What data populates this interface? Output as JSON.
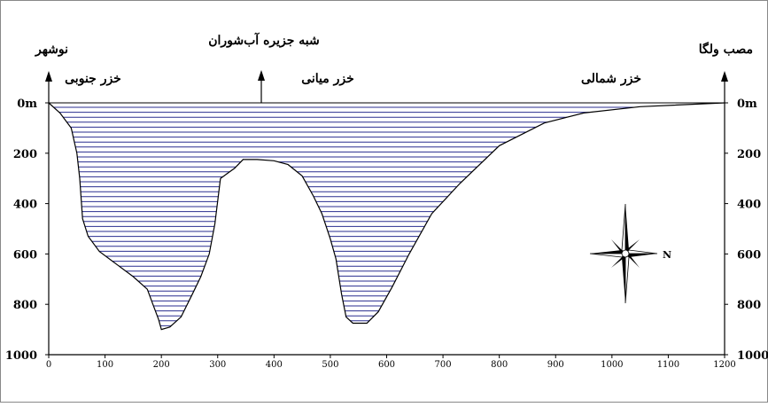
{
  "chart_data": {
    "type": "area",
    "title": "",
    "xlabel": "",
    "ylabel": "",
    "xlim": [
      0,
      1200
    ],
    "ylim": [
      0,
      1000
    ],
    "y_inverted": true,
    "x_ticks": [
      "0",
      "100",
      "200",
      "300",
      "400",
      "500",
      "600",
      "700",
      "800",
      "900",
      "1000",
      "1100",
      "1200"
    ],
    "y_ticks_left": [
      "0m",
      "200",
      "400",
      "600",
      "800",
      "1000"
    ],
    "y_ticks_right": [
      "0m",
      "200",
      "400",
      "600",
      "800",
      "1000"
    ],
    "profile": [
      {
        "x": 0,
        "y": 0
      },
      {
        "x": 20,
        "y": 40
      },
      {
        "x": 40,
        "y": 100
      },
      {
        "x": 50,
        "y": 200
      },
      {
        "x": 55,
        "y": 300
      },
      {
        "x": 60,
        "y": 460
      },
      {
        "x": 70,
        "y": 530
      },
      {
        "x": 90,
        "y": 590
      },
      {
        "x": 120,
        "y": 640
      },
      {
        "x": 150,
        "y": 690
      },
      {
        "x": 175,
        "y": 740
      },
      {
        "x": 185,
        "y": 800
      },
      {
        "x": 195,
        "y": 860
      },
      {
        "x": 200,
        "y": 900
      },
      {
        "x": 215,
        "y": 890
      },
      {
        "x": 235,
        "y": 850
      },
      {
        "x": 255,
        "y": 760
      },
      {
        "x": 270,
        "y": 690
      },
      {
        "x": 285,
        "y": 600
      },
      {
        "x": 295,
        "y": 480
      },
      {
        "x": 305,
        "y": 300
      },
      {
        "x": 330,
        "y": 260
      },
      {
        "x": 345,
        "y": 225
      },
      {
        "x": 370,
        "y": 225
      },
      {
        "x": 400,
        "y": 230
      },
      {
        "x": 425,
        "y": 245
      },
      {
        "x": 450,
        "y": 290
      },
      {
        "x": 470,
        "y": 370
      },
      {
        "x": 485,
        "y": 440
      },
      {
        "x": 500,
        "y": 540
      },
      {
        "x": 510,
        "y": 620
      },
      {
        "x": 520,
        "y": 760
      },
      {
        "x": 528,
        "y": 850
      },
      {
        "x": 540,
        "y": 875
      },
      {
        "x": 565,
        "y": 875
      },
      {
        "x": 585,
        "y": 830
      },
      {
        "x": 610,
        "y": 730
      },
      {
        "x": 640,
        "y": 600
      },
      {
        "x": 680,
        "y": 440
      },
      {
        "x": 730,
        "y": 320
      },
      {
        "x": 800,
        "y": 170
      },
      {
        "x": 880,
        "y": 80
      },
      {
        "x": 950,
        "y": 40
      },
      {
        "x": 1050,
        "y": 15
      },
      {
        "x": 1200,
        "y": 0
      }
    ],
    "fill_pattern": "horizontal-lines",
    "line_color": "#000000",
    "fill_line_color": "#2a2e8f",
    "annotations": {
      "left_top": "نوشهر",
      "center_top": "شبه جزیره آب‌شوران",
      "right_top": "مصب ولگا",
      "south_basin": "خزر جنوبی",
      "middle_basin": "خزر میانی",
      "north_basin": "خزر شمالی",
      "compass_label": "N"
    },
    "compass": true,
    "arrows": [
      "left-axis-top",
      "center-top",
      "right-axis-top"
    ]
  }
}
